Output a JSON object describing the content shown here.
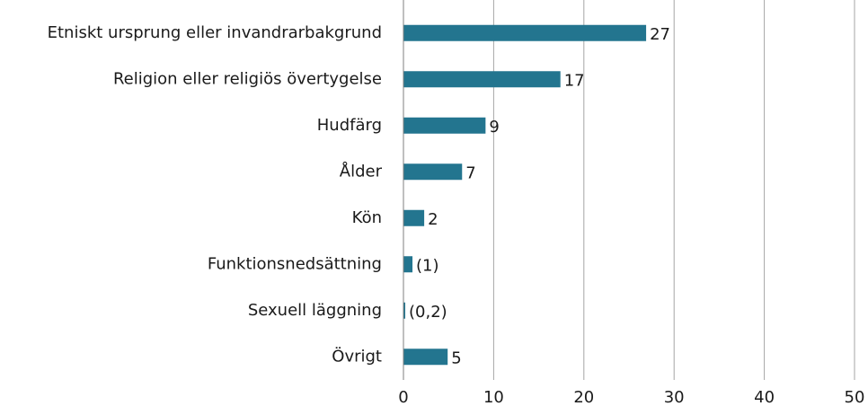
{
  "chart_data": {
    "type": "bar",
    "orientation": "horizontal",
    "categories": [
      "Etniskt ursprung eller invandrarbakgrund",
      "Religion eller religiös övertygelse",
      "Hudfärg",
      "Ålder",
      "Kön",
      "Funktionsnedsättning",
      "Sexuell läggning",
      "Övrigt"
    ],
    "values": [
      26.9,
      17.4,
      9.1,
      6.5,
      2.3,
      1.0,
      0.2,
      4.9
    ],
    "value_labels": [
      "27",
      "17",
      "9",
      "7",
      "2",
      "(1)",
      "(0,2)",
      "5"
    ],
    "color": "#23758f",
    "xlim": [
      0,
      50
    ],
    "xticks": [
      0,
      10,
      20,
      30,
      40,
      50
    ],
    "grid": true
  }
}
